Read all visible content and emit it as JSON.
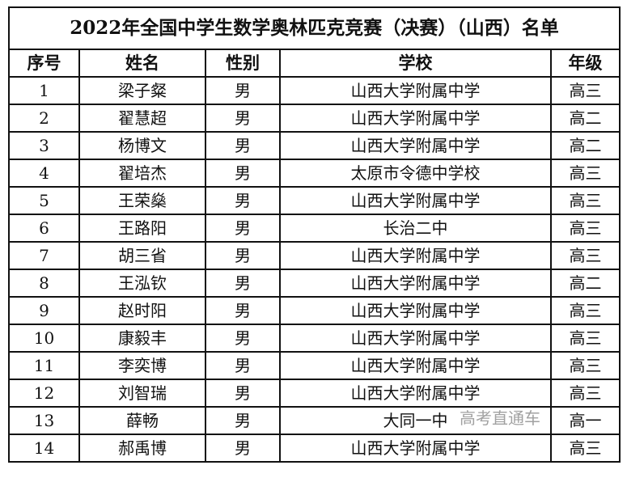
{
  "title": "2022年全国中学生数学奥林匹克竞赛（决赛）（山西）名单",
  "headers": [
    "序号",
    "姓名",
    "性别",
    "学校",
    "年级"
  ],
  "rows": [
    [
      "1",
      "梁子粲",
      "男",
      "山西大学附属中学",
      "高三"
    ],
    [
      "2",
      "翟慧超",
      "男",
      "山西大学附属中学",
      "高二"
    ],
    [
      "3",
      "杨博文",
      "男",
      "山西大学附属中学",
      "高二"
    ],
    [
      "4",
      "翟培杰",
      "男",
      "太原市令德中学校",
      "高三"
    ],
    [
      "5",
      "王荣燊",
      "男",
      "山西大学附属中学",
      "高三"
    ],
    [
      "6",
      "王路阳",
      "男",
      "长治二中",
      "高三"
    ],
    [
      "7",
      "胡三省",
      "男",
      "山西大学附属中学",
      "高三"
    ],
    [
      "8",
      "王泓钦",
      "男",
      "山西大学附属中学",
      "高二"
    ],
    [
      "9",
      "赵时阳",
      "男",
      "山西大学附属中学",
      "高三"
    ],
    [
      "10",
      "康毅丰",
      "男",
      "山西大学附属中学",
      "高三"
    ],
    [
      "11",
      "李奕博",
      "男",
      "山西大学附属中学",
      "高三"
    ],
    [
      "12",
      "刘智瑞",
      "男",
      "山西大学附属中学",
      "高三"
    ],
    [
      "13",
      "薛畅",
      "男",
      "大同一中",
      "高一"
    ],
    [
      "14",
      "郝禹博",
      "男",
      "山西大学附属中学",
      "高三"
    ]
  ],
  "watermark": "高考直通车"
}
